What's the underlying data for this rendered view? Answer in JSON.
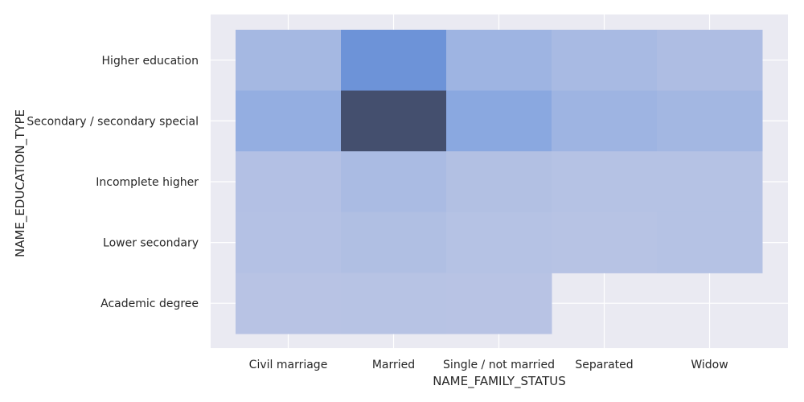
{
  "chart_data": {
    "type": "heatmap",
    "title": "",
    "xlabel": "NAME_FAMILY_STATUS",
    "ylabel": "NAME_EDUCATION_TYPE",
    "x_categories": [
      "Civil marriage",
      "Married",
      "Single / not married",
      "Separated",
      "Widow"
    ],
    "y_categories": [
      "Higher education",
      "Secondary / secondary special",
      "Incomplete higher",
      "Lower secondary",
      "Academic degree"
    ],
    "grid": true,
    "colors": {
      "background": "#eaeaf2",
      "grid": "#ffffff",
      "low": "#b9c4e4",
      "mid": "#6f97de",
      "high": "#444f6e"
    },
    "values": [
      [
        0.16,
        0.62,
        0.22,
        0.14,
        0.09
      ],
      [
        0.3,
        1.0,
        0.38,
        0.22,
        0.18
      ],
      [
        0.05,
        0.12,
        0.06,
        0.03,
        0.03
      ],
      [
        0.04,
        0.07,
        0.03,
        0.02,
        0.03
      ],
      [
        0.01,
        0.02,
        0.01,
        null,
        null
      ]
    ]
  }
}
